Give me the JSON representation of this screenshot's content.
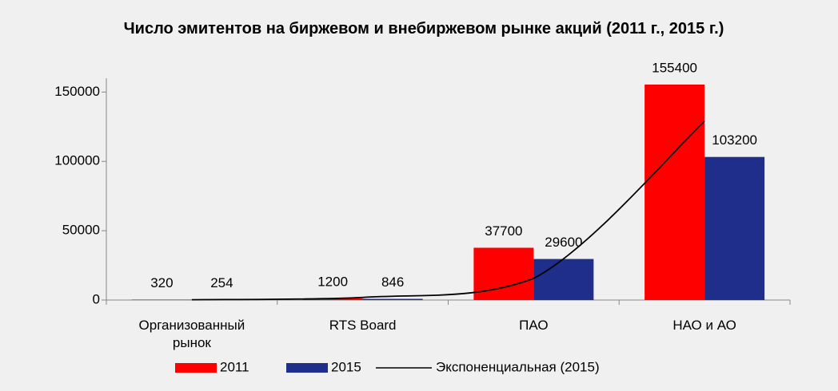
{
  "chart_data": {
    "type": "bar",
    "title": "Число эмитентов на биржевом и внебиржевом рынке акций (2011 г., 2015 г.)",
    "categories": [
      "Организованный рынок",
      "RTS Board",
      "ПАО",
      "НАО и АО"
    ],
    "series": [
      {
        "name": "2011",
        "color": "#ff0000",
        "values": [
          320,
          1200,
          37700,
          155400
        ]
      },
      {
        "name": "2015",
        "color": "#1f2e8a",
        "values": [
          254,
          846,
          29600,
          103200
        ]
      },
      {
        "name": "Экспоненциальная (2015)",
        "type": "line",
        "color": "#000000",
        "values": [
          225,
          1880,
          15600,
          129000
        ]
      }
    ],
    "ylim": [
      0,
      160000
    ],
    "yticks": [
      0,
      50000,
      100000,
      150000
    ],
    "legend": "bottom"
  }
}
